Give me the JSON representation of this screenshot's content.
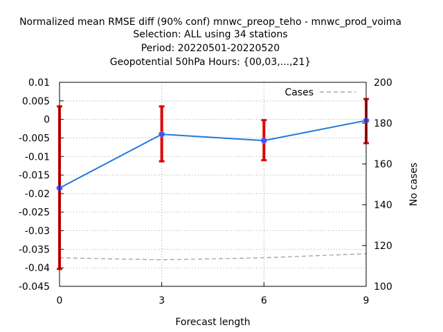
{
  "chart_data": {
    "type": "line",
    "title_lines": [
      "Normalized mean RMSE diff (90% conf) mnwc_preop_teho - mnwc_prod_voima",
      "Selection: ALL using    34 stations",
      "Period: 20220501-20220520",
      "Geopotential 50hPa   Hours: {00,03,...,21}"
    ],
    "xlabel": "Forecast length",
    "ylabel": "",
    "y2label": "No cases",
    "x": [
      0,
      3,
      6,
      9
    ],
    "xlim": [
      0,
      9
    ],
    "ylim": [
      -0.045,
      0.01
    ],
    "y2lim": [
      100,
      200
    ],
    "x_ticks": [
      "0",
      "3",
      "6",
      "9"
    ],
    "y_ticks": [
      0.01,
      0.005,
      0,
      -0.005,
      -0.01,
      -0.015,
      -0.02,
      -0.025,
      -0.03,
      -0.035,
      -0.04,
      -0.045
    ],
    "y_tick_labels": [
      "0.01",
      "0.005",
      "0",
      "-0.005",
      "-0.01",
      "-0.015",
      "-0.02",
      "-0.025",
      "-0.03",
      "-0.035",
      "-0.04",
      "-0.045"
    ],
    "y2_ticks": [
      200,
      180,
      160,
      140,
      120,
      100
    ],
    "y2_tick_labels": [
      "200",
      "180",
      "160",
      "140",
      "120",
      "100"
    ],
    "grid": true,
    "series": [
      {
        "values": [
          -0.0185,
          -0.004,
          -0.0057,
          -0.0003
        ],
        "err_low": [
          -0.0403,
          -0.0113,
          -0.011,
          -0.0064
        ],
        "err_high": [
          0.0035,
          0.0035,
          -0.0002,
          0.0055
        ],
        "color": "#1e78dc",
        "errorbar_color": "#dd0000",
        "marker_color": "#4455dd"
      },
      {
        "name": "Cases",
        "axis": "y2",
        "values": [
          114,
          113,
          114,
          116
        ],
        "color": "#999999",
        "dashed": true
      }
    ],
    "legend_position": "top-right"
  }
}
